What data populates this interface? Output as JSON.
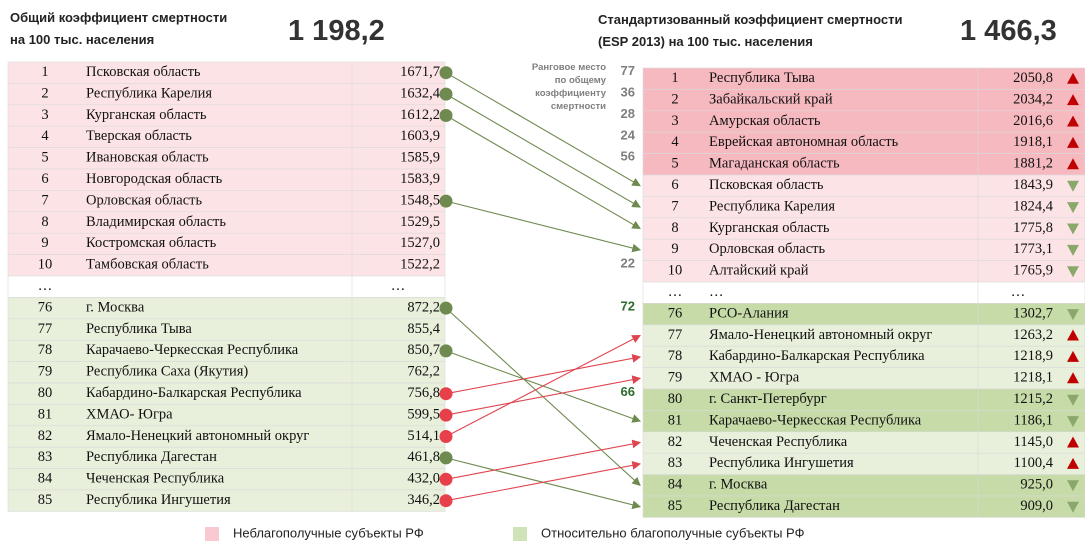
{
  "left": {
    "title": [
      "Общий коэффициент смертности",
      "на 100 тыс. населения"
    ],
    "total": "1 198,2",
    "rows": [
      {
        "rank": "1",
        "name": "Псковская область",
        "value": "1671,7",
        "fill": "#fce4e6"
      },
      {
        "rank": "2",
        "name": "Республика Карелия",
        "value": "1632,4",
        "fill": "#fce4e6"
      },
      {
        "rank": "3",
        "name": "Курганская область",
        "value": "1612,2",
        "fill": "#fce4e6"
      },
      {
        "rank": "4",
        "name": "Тверская область",
        "value": "1603,9",
        "fill": "#fce4e6"
      },
      {
        "rank": "5",
        "name": "Ивановская область",
        "value": "1585,9",
        "fill": "#fce4e6"
      },
      {
        "rank": "6",
        "name": "Новгородская область",
        "value": "1583,9",
        "fill": "#fce4e6"
      },
      {
        "rank": "7",
        "name": "Орловская область",
        "value": "1548,5",
        "fill": "#fce4e6"
      },
      {
        "rank": "8",
        "name": "Владимирская область",
        "value": "1529,5",
        "fill": "#fce4e6"
      },
      {
        "rank": "9",
        "name": "Костромская область",
        "value": "1527,0",
        "fill": "#fce4e6"
      },
      {
        "rank": "10",
        "name": "Тамбовская область",
        "value": "1522,2",
        "fill": "#fce4e6"
      },
      {
        "rank": "…",
        "value": "…",
        "fill": "#ffffff"
      },
      {
        "rank": "76",
        "name": "г. Москва",
        "value": "872,2",
        "fill": "#e8f0dc"
      },
      {
        "rank": "77",
        "name": "Республика Тыва",
        "value": "855,4",
        "fill": "#e8f0dc"
      },
      {
        "rank": "78",
        "name": "Карачаево-Черкесская Республика",
        "value": "850,7",
        "fill": "#e8f0dc"
      },
      {
        "rank": "79",
        "name": "Республика Саха (Якутия)",
        "value": "762,2",
        "fill": "#e8f0dc"
      },
      {
        "rank": "80",
        "name": "Кабардино-Балкарская Республика",
        "value": "756,8",
        "fill": "#e8f0dc"
      },
      {
        "rank": "81",
        "name": "ХМАО- Югра",
        "value": "599,5",
        "fill": "#e8f0dc"
      },
      {
        "rank": "82",
        "name": "Ямало-Ненецкий автономный округ",
        "value": "514,1",
        "fill": "#e8f0dc"
      },
      {
        "rank": "83",
        "name": "Республика Дагестан",
        "value": "461,8",
        "fill": "#e8f0dc"
      },
      {
        "rank": "84",
        "name": "Чеченская Республика",
        "value": "432,0",
        "fill": "#e8f0dc"
      },
      {
        "rank": "85",
        "name": "Республика Ингушетия",
        "value": "346,2",
        "fill": "#e8f0dc"
      }
    ]
  },
  "right": {
    "title": [
      "Стандартизованный коэффициент смертности",
      "(ESP 2013) на 100 тыс. населения"
    ],
    "total": "1 466,3",
    "rank_title": [
      "Ранговое место",
      "по общему",
      "коэффициенту",
      "смертности"
    ],
    "rows": [
      {
        "rank": "1",
        "name": "Республика Тыва",
        "value": "2050,8",
        "trend": "up",
        "fill": "#f6b9c0",
        "left_rank": "77"
      },
      {
        "rank": "2",
        "name": "Забайкальский край",
        "value": "2034,2",
        "trend": "up",
        "fill": "#f6b9c0",
        "left_rank": "36"
      },
      {
        "rank": "3",
        "name": "Амурская область",
        "value": "2016,6",
        "trend": "up",
        "fill": "#f6b9c0",
        "left_rank": "28"
      },
      {
        "rank": "4",
        "name": "Еврейская автономная область",
        "value": "1918,1",
        "trend": "up",
        "fill": "#f6b9c0",
        "left_rank": "24"
      },
      {
        "rank": "5",
        "name": "Магаданская область",
        "value": "1881,2",
        "trend": "up",
        "fill": "#f6b9c0",
        "left_rank": "56"
      },
      {
        "rank": "6",
        "name": "Псковская область",
        "value": "1843,9",
        "trend": "down",
        "fill": "#fce4e6"
      },
      {
        "rank": "7",
        "name": "Республика Карелия",
        "value": "1824,4",
        "trend": "down",
        "fill": "#fce4e6"
      },
      {
        "rank": "8",
        "name": "Курганская область",
        "value": "1775,8",
        "trend": "down",
        "fill": "#fce4e6"
      },
      {
        "rank": "9",
        "name": "Орловская область",
        "value": "1773,1",
        "trend": "down",
        "fill": "#fce4e6"
      },
      {
        "rank": "10",
        "name": "Алтайский край",
        "value": "1765,9",
        "trend": "down",
        "fill": "#fce4e6",
        "left_rank": "22"
      },
      {
        "rank": "…",
        "name": "…",
        "value": "…",
        "fill": "#ffffff"
      },
      {
        "rank": "76",
        "name": "РСО-Алания",
        "value": "1302,7",
        "trend": "down",
        "fill": "#c6dba8",
        "left_rank": "72",
        "left_rank_color": "#2e6b2e"
      },
      {
        "rank": "77",
        "name": "Ямало-Ненецкий автономный округ",
        "value": "1263,2",
        "trend": "up",
        "fill": "#e8f0dc"
      },
      {
        "rank": "78",
        "name": "Кабардино-Балкарская Республика",
        "value": "1218,9",
        "trend": "up",
        "fill": "#e8f0dc"
      },
      {
        "rank": "79",
        "name": "ХМАО - Югра",
        "value": "1218,1",
        "trend": "up",
        "fill": "#e8f0dc"
      },
      {
        "rank": "80",
        "name": "г. Санкт-Петербург",
        "value": "1215,2",
        "trend": "down",
        "fill": "#c6dba8",
        "left_rank": "66",
        "left_rank_color": "#2e6b2e"
      },
      {
        "rank": "81",
        "name": "Карачаево-Черкесская Республика",
        "value": "1186,1",
        "trend": "down",
        "fill": "#c6dba8"
      },
      {
        "rank": "82",
        "name": "Чеченская Республика",
        "value": "1145,0",
        "trend": "up",
        "fill": "#e8f0dc"
      },
      {
        "rank": "83",
        "name": "Республика Ингушетия",
        "value": "1100,4",
        "trend": "up",
        "fill": "#e8f0dc"
      },
      {
        "rank": "84",
        "name": "г. Москва",
        "value": "925,0",
        "trend": "down",
        "fill": "#c6dba8"
      },
      {
        "rank": "85",
        "name": "Республика Дагестан",
        "value": "909,0",
        "trend": "down",
        "fill": "#c6dba8"
      }
    ]
  },
  "legend": [
    {
      "label": "Неблагополучные субъекты РФ",
      "color": "#f8c9d0"
    },
    {
      "label": "Относительно благополучные субъекты РФ",
      "color": "#cfe3b8"
    }
  ]
}
